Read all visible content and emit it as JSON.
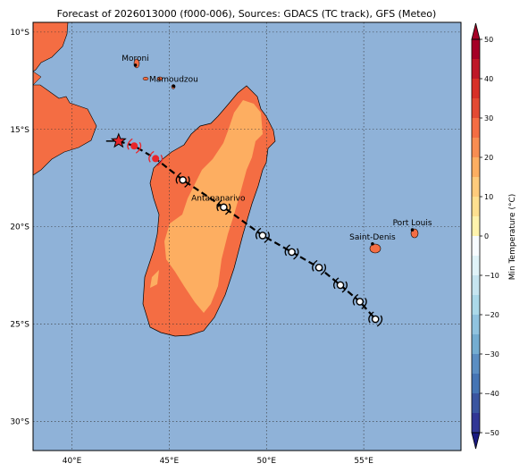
{
  "title": "Forecast of 2026013000 (f000-006), Sources: GDACS (TC track), GFS (Meteo)",
  "map": {
    "lon_range": [
      38,
      60
    ],
    "lat_range": [
      -31.5,
      -9.5
    ],
    "lon_ticks": [
      {
        "value": 40,
        "label": "40°E"
      },
      {
        "value": 45,
        "label": "45°E"
      },
      {
        "value": 50,
        "label": "50°E"
      },
      {
        "value": 55,
        "label": "55°E"
      }
    ],
    "lat_ticks": [
      {
        "value": -10,
        "label": "10°S"
      },
      {
        "value": -15,
        "label": "15°S"
      },
      {
        "value": -20,
        "label": "20°S"
      },
      {
        "value": -25,
        "label": "25°S"
      },
      {
        "value": -30,
        "label": "30°S"
      }
    ],
    "grid": true,
    "ocean_color": "#8fb2d8",
    "land_color_hot": "#f46d43",
    "land_color_warm": "#fdae61",
    "coast_color": "#000000",
    "cities": [
      {
        "name": "Moroni",
        "lon": 43.26,
        "lat": -11.7,
        "label_pos": "above"
      },
      {
        "name": "Mamoudzou",
        "lon": 45.23,
        "lat": -12.78,
        "label_pos": "above"
      },
      {
        "name": "Antananarivo",
        "lon": 47.52,
        "lat": -18.9,
        "label_pos": "above"
      },
      {
        "name": "Saint-Denis",
        "lon": 55.45,
        "lat": -20.88,
        "label_pos": "above"
      },
      {
        "name": "Port Louis",
        "lon": 57.5,
        "lat": -20.16,
        "label_pos": "above"
      }
    ],
    "track": [
      {
        "lon": 42.4,
        "lat": -15.6,
        "kind": "current-star"
      },
      {
        "lon": 43.2,
        "lat": -15.85,
        "kind": "observed"
      },
      {
        "lon": 44.3,
        "lat": -16.5,
        "kind": "observed"
      },
      {
        "lon": 45.7,
        "lat": -17.6,
        "kind": "forecast"
      },
      {
        "lon": 47.8,
        "lat": -19.0,
        "kind": "forecast"
      },
      {
        "lon": 49.8,
        "lat": -20.45,
        "kind": "forecast"
      },
      {
        "lon": 51.3,
        "lat": -21.3,
        "kind": "forecast"
      },
      {
        "lon": 52.7,
        "lat": -22.1,
        "kind": "forecast"
      },
      {
        "lon": 53.8,
        "lat": -23.0,
        "kind": "forecast"
      },
      {
        "lon": 54.8,
        "lat": -23.85,
        "kind": "forecast"
      },
      {
        "lon": 55.6,
        "lat": -24.75,
        "kind": "forecast"
      }
    ]
  },
  "colorbar": {
    "label": "Min Temperature (°C)",
    "range": [
      -50,
      50
    ],
    "tick_values": [
      50,
      40,
      30,
      20,
      10,
      0,
      -10,
      -20,
      -30,
      -40,
      -50
    ],
    "tick_labels": [
      "50",
      "40",
      "30",
      "20",
      "10",
      "0",
      "−10",
      "−20",
      "−30",
      "−40",
      "−50"
    ],
    "levels": [
      {
        "from": 45,
        "to": 50,
        "color": "#a50026"
      },
      {
        "from": 40,
        "to": 45,
        "color": "#bf1727"
      },
      {
        "from": 35,
        "to": 40,
        "color": "#d73027"
      },
      {
        "from": 30,
        "to": 35,
        "color": "#e34a33"
      },
      {
        "from": 25,
        "to": 30,
        "color": "#f46d43"
      },
      {
        "from": 20,
        "to": 25,
        "color": "#f88d52"
      },
      {
        "from": 15,
        "to": 20,
        "color": "#fdae61"
      },
      {
        "from": 10,
        "to": 15,
        "color": "#fecb7c"
      },
      {
        "from": 5,
        "to": 10,
        "color": "#fee090"
      },
      {
        "from": 0,
        "to": 5,
        "color": "#fff3ad"
      },
      {
        "from": -5,
        "to": 0,
        "color": "#f7fbff"
      },
      {
        "from": -10,
        "to": -5,
        "color": "#e0f3f8"
      },
      {
        "from": -15,
        "to": -10,
        "color": "#c6e5f0"
      },
      {
        "from": -20,
        "to": -15,
        "color": "#abd9e9"
      },
      {
        "from": -25,
        "to": -20,
        "color": "#90c3df"
      },
      {
        "from": -30,
        "to": -25,
        "color": "#74add1"
      },
      {
        "from": -35,
        "to": -30,
        "color": "#5b8ec2"
      },
      {
        "from": -40,
        "to": -35,
        "color": "#4575b4"
      },
      {
        "from": -45,
        "to": -40,
        "color": "#3a55a0"
      },
      {
        "from": -50,
        "to": -45,
        "color": "#313695"
      }
    ]
  }
}
